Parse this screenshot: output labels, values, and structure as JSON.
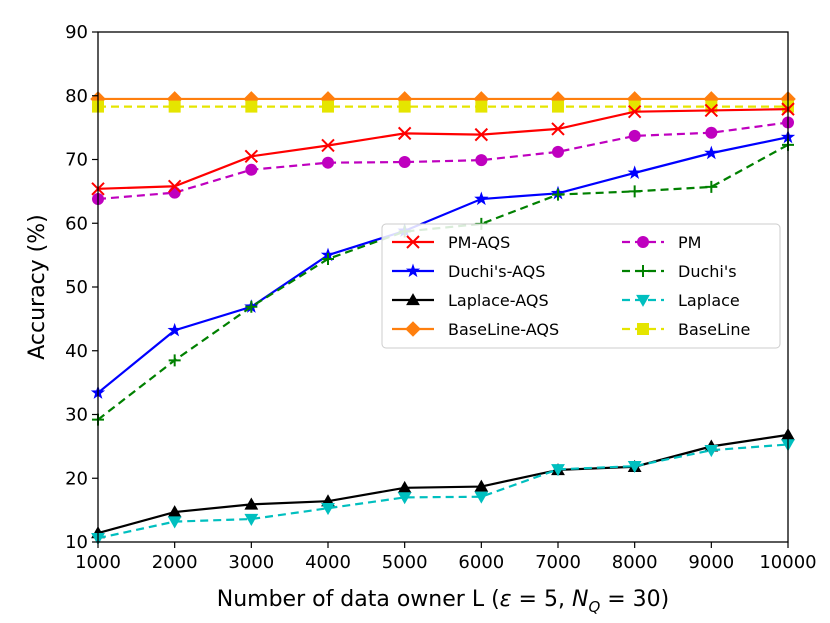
{
  "chart_data": {
    "type": "line",
    "xlabel": "Number of data owner L (ε = 5, N_Q = 30)",
    "ylabel": "Accuracy (%)",
    "xlim": [
      1000,
      10000
    ],
    "ylim": [
      10,
      90
    ],
    "x": [
      1000,
      2000,
      3000,
      4000,
      5000,
      6000,
      7000,
      8000,
      9000,
      10000
    ],
    "xticks": [
      "1000",
      "2000",
      "3000",
      "4000",
      "5000",
      "6000",
      "7000",
      "8000",
      "9000",
      "10000"
    ],
    "yticks": [
      "10",
      "20",
      "30",
      "40",
      "50",
      "60",
      "70",
      "80",
      "90"
    ],
    "grid": false,
    "legend_position": "center-right",
    "series": [
      {
        "name": "PM-AQS",
        "color": "#ff0000",
        "marker": "x",
        "dash": "solid",
        "values": [
          65.4,
          65.8,
          70.5,
          72.2,
          74.1,
          73.9,
          74.8,
          77.5,
          77.7,
          77.9
        ]
      },
      {
        "name": "PM",
        "color": "#bf00bf",
        "marker": "circle",
        "dash": "dashed",
        "values": [
          63.8,
          64.8,
          68.4,
          69.5,
          69.6,
          69.9,
          71.2,
          73.7,
          74.2,
          75.8
        ]
      },
      {
        "name": "Duchi's-AQS",
        "color": "#0000ff",
        "marker": "star",
        "dash": "solid",
        "values": [
          33.4,
          43.2,
          46.9,
          55.0,
          58.8,
          63.8,
          64.7,
          67.9,
          71.0,
          73.5
        ]
      },
      {
        "name": "Duchi's",
        "color": "#008000",
        "marker": "plus",
        "dash": "dashed",
        "values": [
          29.2,
          38.5,
          46.9,
          54.4,
          58.7,
          59.9,
          64.5,
          65.0,
          65.7,
          72.3
        ]
      },
      {
        "name": "Laplace-AQS",
        "color": "#000000",
        "marker": "triangle-up",
        "dash": "solid",
        "values": [
          11.4,
          14.7,
          15.9,
          16.4,
          18.5,
          18.7,
          21.3,
          21.8,
          25.0,
          26.8
        ]
      },
      {
        "name": "Laplace",
        "color": "#00bfbf",
        "marker": "triangle-down",
        "dash": "dashed",
        "values": [
          10.6,
          13.2,
          13.6,
          15.3,
          17.0,
          17.1,
          21.4,
          21.9,
          24.4,
          25.3
        ]
      },
      {
        "name": "BaseLine-AQS",
        "color": "#ff7f0e",
        "marker": "diamond",
        "dash": "solid",
        "values": [
          79.5,
          79.5,
          79.5,
          79.5,
          79.5,
          79.5,
          79.5,
          79.5,
          79.5,
          79.5
        ]
      },
      {
        "name": "BaseLine",
        "color": "#e5e500",
        "marker": "square",
        "dash": "dashed",
        "values": [
          78.3,
          78.3,
          78.3,
          78.3,
          78.3,
          78.3,
          78.3,
          78.3,
          78.3,
          78.3
        ]
      }
    ],
    "legend_order": [
      0,
      1,
      2,
      3,
      4,
      5,
      6,
      7
    ]
  }
}
